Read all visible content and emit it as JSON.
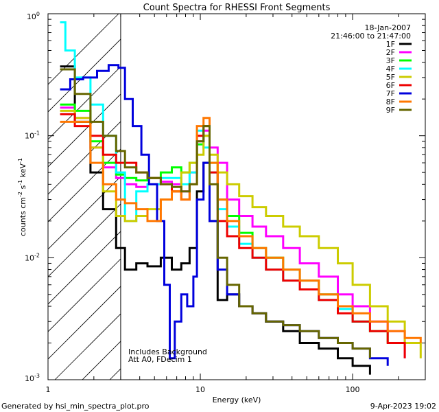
{
  "chart_data": {
    "type": "line",
    "title": "Count Spectra for RHESSI Front Segments",
    "xlabel": "Energy (keV)",
    "ylabel_parts": [
      "counts cm",
      "-2",
      " s",
      "-1",
      " keV",
      "-1"
    ],
    "xscale": "log",
    "yscale": "log",
    "xlim": [
      1,
      300
    ],
    "ylim": [
      0.001,
      1
    ],
    "x_tick_labels": [
      "1",
      "10",
      "100"
    ],
    "y_tick_labels": [
      {
        "base": "10",
        "exp": "0"
      },
      {
        "base": "10",
        "exp": "-1"
      },
      {
        "base": "10",
        "exp": "-2"
      },
      {
        "base": "10",
        "exp": "-3"
      }
    ],
    "date": "18-Jan-2007",
    "time_range": "21:46:00 to 21:47:00",
    "hatched_region_upper_kev": 3,
    "annotations": [
      "Includes Background",
      "Att A0, FDecim 1"
    ],
    "footer_left": "Generated by hsi_min_spectra_plot.pro",
    "footer_right": "9-Apr-2023 19:02",
    "series": [
      {
        "name": "1F",
        "color": "#000000",
        "points": [
          [
            1.2,
            0.37
          ],
          [
            1.5,
            0.13
          ],
          [
            1.9,
            0.05
          ],
          [
            2.3,
            0.025
          ],
          [
            2.8,
            0.012
          ],
          [
            3.2,
            0.008
          ],
          [
            3.8,
            0.009
          ],
          [
            4.5,
            0.0085
          ],
          [
            5.5,
            0.01
          ],
          [
            6.5,
            0.008
          ],
          [
            7.5,
            0.009
          ],
          [
            8.5,
            0.012
          ],
          [
            9.5,
            0.035
          ],
          [
            10.5,
            0.06
          ],
          [
            11.5,
            0.02
          ],
          [
            13,
            0.0045
          ],
          [
            15,
            0.005
          ],
          [
            18,
            0.004
          ],
          [
            22,
            0.0035
          ],
          [
            27,
            0.003
          ],
          [
            35,
            0.0025
          ],
          [
            45,
            0.002
          ],
          [
            60,
            0.0018
          ],
          [
            80,
            0.0015
          ],
          [
            100,
            0.0013
          ],
          [
            130,
            0.0011
          ]
        ]
      },
      {
        "name": "2F",
        "color": "#ff00ff",
        "points": [
          [
            1.2,
            0.17
          ],
          [
            1.5,
            0.14
          ],
          [
            1.9,
            0.08
          ],
          [
            2.3,
            0.055
          ],
          [
            2.8,
            0.045
          ],
          [
            3.2,
            0.04
          ],
          [
            3.8,
            0.038
          ],
          [
            4.5,
            0.04
          ],
          [
            5.5,
            0.042
          ],
          [
            6.5,
            0.04
          ],
          [
            7.5,
            0.035
          ],
          [
            8.5,
            0.05
          ],
          [
            9.5,
            0.09
          ],
          [
            10.5,
            0.11
          ],
          [
            11.5,
            0.08
          ],
          [
            13,
            0.06
          ],
          [
            15,
            0.03
          ],
          [
            18,
            0.022
          ],
          [
            22,
            0.018
          ],
          [
            27,
            0.015
          ],
          [
            35,
            0.012
          ],
          [
            45,
            0.009
          ],
          [
            60,
            0.007
          ],
          [
            80,
            0.005
          ],
          [
            100,
            0.004
          ],
          [
            130,
            0.003
          ],
          [
            170,
            0.0025
          ],
          [
            220,
            0.0015
          ]
        ]
      },
      {
        "name": "3F",
        "color": "#00ff00",
        "points": [
          [
            1.2,
            0.18
          ],
          [
            1.5,
            0.16
          ],
          [
            1.9,
            0.09
          ],
          [
            2.3,
            0.06
          ],
          [
            2.8,
            0.048
          ],
          [
            3.2,
            0.045
          ],
          [
            3.8,
            0.043
          ],
          [
            4.5,
            0.045
          ],
          [
            5.5,
            0.05
          ],
          [
            6.5,
            0.055
          ],
          [
            7.5,
            0.05
          ],
          [
            8.5,
            0.06
          ],
          [
            9.5,
            0.085
          ],
          [
            10.5,
            0.1
          ],
          [
            11.5,
            0.06
          ],
          [
            13,
            0.03
          ],
          [
            15,
            0.022
          ],
          [
            18,
            0.016
          ],
          [
            22,
            0.012
          ],
          [
            27,
            0.01
          ],
          [
            35,
            0.008
          ],
          [
            45,
            0.0065
          ],
          [
            60,
            0.005
          ],
          [
            80,
            0.004
          ],
          [
            100,
            0.003
          ],
          [
            130,
            0.0025
          ],
          [
            170,
            0.002
          ]
        ]
      },
      {
        "name": "4F",
        "color": "#00ffff",
        "points": [
          [
            1.2,
            0.85
          ],
          [
            1.3,
            0.5
          ],
          [
            1.5,
            0.3
          ],
          [
            1.9,
            0.18
          ],
          [
            2.3,
            0.1
          ],
          [
            2.8,
            0.05
          ],
          [
            3.2,
            0.02
          ],
          [
            3.8,
            0.035
          ],
          [
            4.5,
            0.04
          ],
          [
            5.5,
            0.045
          ],
          [
            6.5,
            0.045
          ],
          [
            7.5,
            0.04
          ],
          [
            8.5,
            0.05
          ],
          [
            9.5,
            0.11
          ],
          [
            10.5,
            0.08
          ],
          [
            11.5,
            0.05
          ],
          [
            13,
            0.025
          ],
          [
            15,
            0.018
          ],
          [
            18,
            0.013
          ],
          [
            22,
            0.01
          ],
          [
            27,
            0.008
          ],
          [
            35,
            0.0065
          ],
          [
            45,
            0.0055
          ],
          [
            60,
            0.0045
          ],
          [
            80,
            0.0038
          ],
          [
            100,
            0.003
          ],
          [
            130,
            0.0025
          ]
        ]
      },
      {
        "name": "5F",
        "color": "#cccc00",
        "points": [
          [
            1.2,
            0.16
          ],
          [
            1.5,
            0.14
          ],
          [
            1.9,
            0.08
          ],
          [
            2.3,
            0.035
          ],
          [
            2.8,
            0.022
          ],
          [
            3.2,
            0.02
          ],
          [
            3.8,
            0.022
          ],
          [
            4.5,
            0.025
          ],
          [
            5.5,
            0.03
          ],
          [
            6.5,
            0.035
          ],
          [
            7.5,
            0.05
          ],
          [
            8.5,
            0.06
          ],
          [
            9.5,
            0.07
          ],
          [
            10.5,
            0.1
          ],
          [
            11.5,
            0.07
          ],
          [
            13,
            0.05
          ],
          [
            15,
            0.04
          ],
          [
            18,
            0.032
          ],
          [
            22,
            0.026
          ],
          [
            27,
            0.022
          ],
          [
            35,
            0.018
          ],
          [
            45,
            0.015
          ],
          [
            60,
            0.012
          ],
          [
            80,
            0.009
          ],
          [
            100,
            0.006
          ],
          [
            130,
            0.004
          ],
          [
            170,
            0.003
          ],
          [
            220,
            0.002
          ],
          [
            280,
            0.0015
          ]
        ]
      },
      {
        "name": "6F",
        "color": "#ee0000",
        "points": [
          [
            1.2,
            0.15
          ],
          [
            1.5,
            0.12
          ],
          [
            1.9,
            0.1
          ],
          [
            2.3,
            0.07
          ],
          [
            2.8,
            0.06
          ],
          [
            3.2,
            0.06
          ],
          [
            3.8,
            0.05
          ],
          [
            4.5,
            0.045
          ],
          [
            5.5,
            0.04
          ],
          [
            6.5,
            0.035
          ],
          [
            7.5,
            0.03
          ],
          [
            8.5,
            0.04
          ],
          [
            9.5,
            0.1
          ],
          [
            10.5,
            0.12
          ],
          [
            11.5,
            0.05
          ],
          [
            13,
            0.02
          ],
          [
            15,
            0.015
          ],
          [
            18,
            0.012
          ],
          [
            22,
            0.01
          ],
          [
            27,
            0.008
          ],
          [
            35,
            0.0065
          ],
          [
            45,
            0.0055
          ],
          [
            60,
            0.0045
          ],
          [
            80,
            0.0035
          ],
          [
            100,
            0.003
          ],
          [
            130,
            0.0025
          ],
          [
            170,
            0.002
          ],
          [
            220,
            0.0015
          ]
        ]
      },
      {
        "name": "7F",
        "color": "#0000dd",
        "points": [
          [
            1.2,
            0.24
          ],
          [
            1.4,
            0.29
          ],
          [
            1.7,
            0.3
          ],
          [
            2.1,
            0.34
          ],
          [
            2.5,
            0.38
          ],
          [
            2.9,
            0.36
          ],
          [
            3.2,
            0.2
          ],
          [
            3.6,
            0.12
          ],
          [
            4.1,
            0.07
          ],
          [
            4.6,
            0.04
          ],
          [
            5.2,
            0.02
          ],
          [
            5.8,
            0.006
          ],
          [
            6.3,
            0.0015
          ],
          [
            6.8,
            0.003
          ],
          [
            7.5,
            0.005
          ],
          [
            8.2,
            0.004
          ],
          [
            9,
            0.007
          ],
          [
            9.5,
            0.03
          ],
          [
            10.5,
            0.06
          ],
          [
            11.5,
            0.02
          ],
          [
            13,
            0.008
          ],
          [
            15,
            0.005
          ],
          [
            18,
            0.004
          ],
          [
            22,
            0.0035
          ],
          [
            27,
            0.003
          ],
          [
            35,
            0.0028
          ],
          [
            45,
            0.0025
          ],
          [
            60,
            0.0022
          ],
          [
            80,
            0.002
          ],
          [
            100,
            0.0018
          ],
          [
            130,
            0.0015
          ],
          [
            170,
            0.0013
          ]
        ]
      },
      {
        "name": "8F",
        "color": "#ff7700",
        "points": [
          [
            1.2,
            0.13
          ],
          [
            1.5,
            0.13
          ],
          [
            1.9,
            0.06
          ],
          [
            2.3,
            0.04
          ],
          [
            2.8,
            0.03
          ],
          [
            3.2,
            0.028
          ],
          [
            3.8,
            0.025
          ],
          [
            4.5,
            0.02
          ],
          [
            5.5,
            0.03
          ],
          [
            6.5,
            0.035
          ],
          [
            7.5,
            0.03
          ],
          [
            8.5,
            0.04
          ],
          [
            9.5,
            0.12
          ],
          [
            10.5,
            0.14
          ],
          [
            11.5,
            0.06
          ],
          [
            13,
            0.03
          ],
          [
            15,
            0.02
          ],
          [
            18,
            0.015
          ],
          [
            22,
            0.012
          ],
          [
            27,
            0.01
          ],
          [
            35,
            0.008
          ],
          [
            45,
            0.0065
          ],
          [
            60,
            0.005
          ],
          [
            80,
            0.004
          ],
          [
            100,
            0.0035
          ],
          [
            130,
            0.003
          ],
          [
            170,
            0.0025
          ],
          [
            220,
            0.0022
          ],
          [
            280,
            0.002
          ]
        ]
      },
      {
        "name": "9F",
        "color": "#666600",
        "points": [
          [
            1.2,
            0.35
          ],
          [
            1.5,
            0.22
          ],
          [
            1.9,
            0.13
          ],
          [
            2.3,
            0.1
          ],
          [
            2.8,
            0.075
          ],
          [
            3.2,
            0.055
          ],
          [
            3.8,
            0.05
          ],
          [
            4.5,
            0.045
          ],
          [
            5.5,
            0.04
          ],
          [
            6.5,
            0.038
          ],
          [
            7.5,
            0.035
          ],
          [
            8.5,
            0.04
          ],
          [
            9.5,
            0.09
          ],
          [
            10.5,
            0.12
          ],
          [
            11.5,
            0.04
          ],
          [
            13,
            0.01
          ],
          [
            15,
            0.006
          ],
          [
            18,
            0.004
          ],
          [
            22,
            0.0035
          ],
          [
            27,
            0.003
          ],
          [
            35,
            0.0028
          ],
          [
            45,
            0.0025
          ],
          [
            60,
            0.0022
          ],
          [
            80,
            0.002
          ],
          [
            100,
            0.0018
          ],
          [
            130,
            0.0015
          ]
        ]
      }
    ]
  }
}
